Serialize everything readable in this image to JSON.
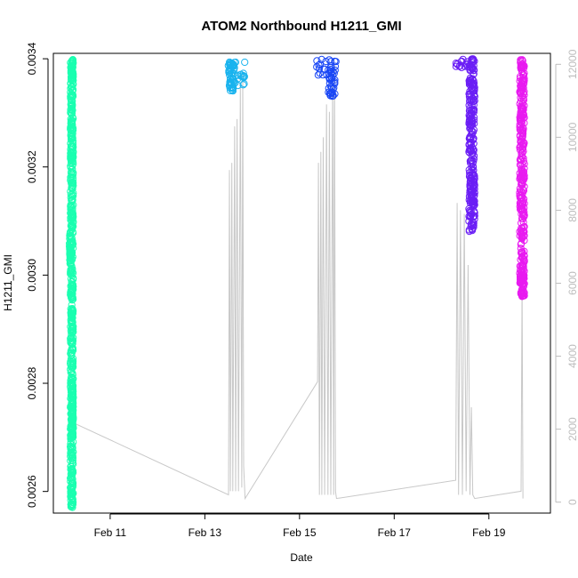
{
  "chart_data": {
    "type": "scatter",
    "title": "ATOM2 Northbound H1211_GMI",
    "xlabel": "Date",
    "ylabel": "H1211_GMI",
    "x_tick_labels": [
      "Feb 11",
      "Feb 13",
      "Feb 15",
      "Feb 17",
      "Feb 19"
    ],
    "x_tick_values": [
      11,
      13,
      15,
      17,
      19
    ],
    "xlim": [
      9.8,
      20.3
    ],
    "ylim": [
      0.00256,
      0.00341
    ],
    "y_tick_values": [
      0.0026,
      0.0028,
      0.003,
      0.0032,
      0.0034
    ],
    "y_tick_labels": [
      "0.0026",
      "0.0028",
      "0.0030",
      "0.0032",
      "0.0034"
    ],
    "y2_tick_values": [
      0,
      2000,
      4000,
      6000,
      8000,
      10000,
      12000
    ],
    "y2_tick_labels": [
      "0",
      "2000",
      "4000",
      "6000",
      "8000",
      "10000",
      "12000"
    ],
    "y2lim": [
      -300,
      12300
    ],
    "y2_color": "#bdbdbd",
    "secondary_line": {
      "color": "#c8c8c8",
      "points": [
        [
          10.18,
          2200
        ],
        [
          13.5,
          200
        ],
        [
          13.52,
          9100
        ],
        [
          13.54,
          300
        ],
        [
          13.57,
          9300
        ],
        [
          13.59,
          300
        ],
        [
          13.63,
          10300
        ],
        [
          13.65,
          300
        ],
        [
          13.68,
          10500
        ],
        [
          13.71,
          300
        ],
        [
          13.75,
          11500
        ],
        [
          13.78,
          400
        ],
        [
          13.8,
          11700
        ],
        [
          13.82,
          1000
        ],
        [
          13.85,
          100
        ],
        [
          15.38,
          3300
        ],
        [
          15.4,
          9300
        ],
        [
          15.42,
          200
        ],
        [
          15.45,
          9600
        ],
        [
          15.47,
          200
        ],
        [
          15.5,
          10000
        ],
        [
          15.53,
          200
        ],
        [
          15.57,
          10900
        ],
        [
          15.6,
          200
        ],
        [
          15.63,
          10700
        ],
        [
          15.66,
          200
        ],
        [
          15.7,
          11600
        ],
        [
          15.72,
          200
        ],
        [
          15.74,
          12000
        ],
        [
          15.76,
          300
        ],
        [
          15.78,
          100
        ],
        [
          18.3,
          600
        ],
        [
          18.33,
          8200
        ],
        [
          18.36,
          200
        ],
        [
          18.4,
          8000
        ],
        [
          18.44,
          200
        ],
        [
          18.48,
          7900
        ],
        [
          18.52,
          300
        ],
        [
          18.56,
          6500
        ],
        [
          18.6,
          200
        ],
        [
          18.63,
          2600
        ],
        [
          18.66,
          200
        ],
        [
          18.7,
          100
        ],
        [
          19.68,
          300
        ],
        [
          19.7,
          6000
        ],
        [
          19.72,
          100
        ]
      ]
    },
    "series": [
      {
        "color": "#1affb0",
        "segments": [
          {
            "x": [
              10.14,
              10.17
            ],
            "y": [
              0.00302,
              0.00308
            ]
          },
          {
            "x": [
              10.16,
              10.22
            ],
            "y": [
              0.00257,
              0.0034
            ]
          },
          {
            "x": [
              10.18,
              10.22
            ],
            "y": [
              0.0027,
              0.0028
            ]
          },
          {
            "x": [
              10.18,
              10.22
            ],
            "y": [
              0.00336,
              0.0034
            ]
          }
        ]
      },
      {
        "color": "#19b3ee",
        "segments": [
          {
            "x": [
              13.48,
              13.85
            ],
            "y": [
              0.00335,
              0.0034
            ]
          },
          {
            "x": [
              13.5,
              13.62
            ],
            "y": [
              0.00334,
              0.00339
            ]
          }
        ]
      },
      {
        "color": "#1a47f5",
        "segments": [
          {
            "x": [
              15.35,
              15.78
            ],
            "y": [
              0.00337,
              0.0034
            ]
          },
          {
            "x": [
              15.6,
              15.75
            ],
            "y": [
              0.00333,
              0.00338
            ]
          }
        ]
      },
      {
        "color": "#6a1ef5",
        "segments": [
          {
            "x": [
              18.3,
              18.7
            ],
            "y": [
              0.00338,
              0.0034
            ]
          },
          {
            "x": [
              18.58,
              18.7
            ],
            "y": [
              0.00308,
              0.0034
            ]
          },
          {
            "x": [
              18.6,
              18.7
            ],
            "y": [
              0.00313,
              0.00318
            ]
          }
        ]
      },
      {
        "color": "#e81af0",
        "segments": [
          {
            "x": [
              19.65,
              19.75
            ],
            "y": [
              0.00296,
              0.0034
            ]
          },
          {
            "x": [
              19.66,
              19.74
            ],
            "y": [
              0.00296,
              0.003
            ]
          }
        ]
      }
    ]
  }
}
